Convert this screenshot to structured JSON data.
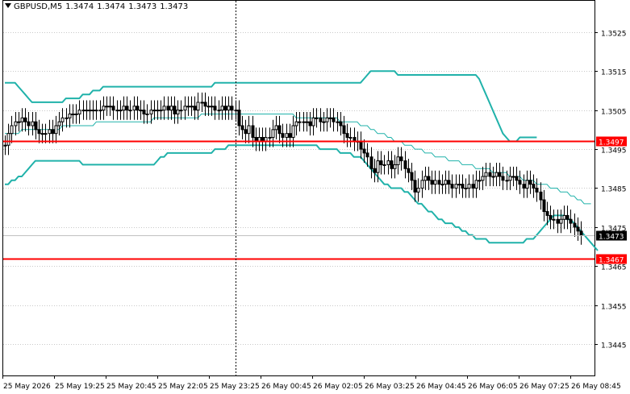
{
  "header": {
    "symbol": "GBPUSD,M5",
    "open": "1.3474",
    "high": "1.3474",
    "low": "1.3473",
    "close": "1.3473"
  },
  "colors": {
    "band": "#20b2aa",
    "hline": "#ff0000",
    "candle": "#000000",
    "grid": "#c8c8c8",
    "price_label_bg": "#000000",
    "hline_label_bg": "#ff0000"
  },
  "chart_data": {
    "type": "candlestick",
    "y_range": [
      1.3437,
      1.3533
    ],
    "y_ticks": [
      "1.3525",
      "1.3515",
      "1.3505",
      "1.3495",
      "1.3485",
      "1.3475",
      "1.3465",
      "1.3455",
      "1.3445"
    ],
    "y_tick_values": [
      1.3525,
      1.3515,
      1.3505,
      1.3495,
      1.3485,
      1.3475,
      1.3465,
      1.3455,
      1.3445
    ],
    "x_ticks": [
      "25 May 2026",
      "25 May 19:25",
      "25 May 20:45",
      "25 May 22:05",
      "25 May 23:25",
      "26 May 00:45",
      "26 May 02:05",
      "26 May 03:25",
      "26 May 04:45",
      "26 May 06:05",
      "26 May 07:25",
      "26 May 08:45"
    ],
    "horizontal_lines": [
      {
        "price": 1.3497,
        "label": "1.3497"
      },
      {
        "price": 1.3467,
        "label": "1.3467"
      }
    ],
    "current_price": {
      "price": 1.3473,
      "label": "1.3473"
    },
    "vertical_marker_bar": 68,
    "close": [
      1.3496,
      1.3499,
      1.3501,
      1.3502,
      1.3502,
      1.3503,
      1.3502,
      1.3501,
      1.3502,
      1.35,
      1.3499,
      1.3499,
      1.3499,
      1.35,
      1.3499,
      1.3501,
      1.3502,
      1.3503,
      1.3503,
      1.3504,
      1.3504,
      1.3504,
      1.3505,
      1.3505,
      1.3505,
      1.3505,
      1.3505,
      1.3505,
      1.3505,
      1.3506,
      1.3506,
      1.3506,
      1.3505,
      1.3505,
      1.3505,
      1.3506,
      1.3505,
      1.3505,
      1.3506,
      1.3505,
      1.3505,
      1.3504,
      1.3504,
      1.3505,
      1.3505,
      1.3505,
      1.3505,
      1.3506,
      1.3505,
      1.3506,
      1.3504,
      1.3505,
      1.3505,
      1.3506,
      1.3506,
      1.3506,
      1.3505,
      1.3507,
      1.3507,
      1.3506,
      1.3506,
      1.3506,
      1.3505,
      1.3505,
      1.3506,
      1.3505,
      1.3506,
      1.3505,
      1.3505,
      1.3501,
      1.35,
      1.3499,
      1.3501,
      1.3498,
      1.3497,
      1.3498,
      1.3497,
      1.3498,
      1.3498,
      1.35,
      1.3501,
      1.3499,
      1.3498,
      1.3499,
      1.3498,
      1.3501,
      1.3502,
      1.3502,
      1.3502,
      1.3502,
      1.3501,
      1.3503,
      1.3503,
      1.3502,
      1.3502,
      1.3503,
      1.3503,
      1.3502,
      1.3502,
      1.3501,
      1.3499,
      1.3498,
      1.3498,
      1.3497,
      1.3497,
      1.3495,
      1.3494,
      1.3493,
      1.349,
      1.3489,
      1.3492,
      1.3491,
      1.3491,
      1.3492,
      1.349,
      1.3491,
      1.3493,
      1.3492,
      1.349,
      1.3489,
      1.3487,
      1.3484,
      1.3485,
      1.3487,
      1.3488,
      1.3487,
      1.3486,
      1.3487,
      1.3486,
      1.3486,
      1.3487,
      1.3486,
      1.3485,
      1.3486,
      1.3486,
      1.3485,
      1.3485,
      1.3486,
      1.3485,
      1.3487,
      1.3487,
      1.3488,
      1.3489,
      1.3488,
      1.3488,
      1.3489,
      1.3488,
      1.3487,
      1.3487,
      1.3488,
      1.3488,
      1.3487,
      1.3486,
      1.3485,
      1.3487,
      1.3486,
      1.3485,
      1.3484,
      1.3482,
      1.3479,
      1.3478,
      1.3477,
      1.3477,
      1.3476,
      1.3477,
      1.3478,
      1.3477,
      1.3476,
      1.3475,
      1.3474,
      1.3473
    ],
    "bb_upper": [
      1.3512,
      1.3512,
      1.3512,
      1.3512,
      1.3511,
      1.351,
      1.3509,
      1.3508,
      1.3507,
      1.3507,
      1.3507,
      1.3507,
      1.3507,
      1.3507,
      1.3507,
      1.3507,
      1.3507,
      1.3507,
      1.3508,
      1.3508,
      1.3508,
      1.3508,
      1.3508,
      1.3509,
      1.3509,
      1.3509,
      1.351,
      1.351,
      1.351,
      1.3511,
      1.3511,
      1.3511,
      1.3511,
      1.3511,
      1.3511,
      1.3511,
      1.3511,
      1.3511,
      1.3511,
      1.3511,
      1.3511,
      1.3511,
      1.3511,
      1.3511,
      1.3511,
      1.3511,
      1.3511,
      1.3511,
      1.3511,
      1.3511,
      1.3511,
      1.3511,
      1.3511,
      1.3511,
      1.3511,
      1.3511,
      1.3511,
      1.3511,
      1.3511,
      1.3511,
      1.3511,
      1.3511,
      1.3512,
      1.3512,
      1.3512,
      1.3512,
      1.3512,
      1.3512,
      1.3512,
      1.3512,
      1.3512,
      1.3512,
      1.3512,
      1.3512,
      1.3512,
      1.3512,
      1.3512,
      1.3512,
      1.3512,
      1.3512,
      1.3512,
      1.3512,
      1.3512,
      1.3512,
      1.3512,
      1.3512,
      1.3512,
      1.3512,
      1.3512,
      1.3512,
      1.3512,
      1.3512,
      1.3512,
      1.3512,
      1.3512,
      1.3512,
      1.3512,
      1.3512,
      1.3512,
      1.3512,
      1.3512,
      1.3512,
      1.3512,
      1.3512,
      1.3512,
      1.3512,
      1.3513,
      1.3514,
      1.3515,
      1.3515,
      1.3515,
      1.3515,
      1.3515,
      1.3515,
      1.3515,
      1.3515,
      1.3514,
      1.3514,
      1.3514,
      1.3514,
      1.3514,
      1.3514,
      1.3514,
      1.3514,
      1.3514,
      1.3514,
      1.3514,
      1.3514,
      1.3514,
      1.3514,
      1.3514,
      1.3514,
      1.3514,
      1.3514,
      1.3514,
      1.3514,
      1.3514,
      1.3514,
      1.3514,
      1.3514,
      1.3513,
      1.3511,
      1.3509,
      1.3507,
      1.3505,
      1.3503,
      1.3501,
      1.3499,
      1.3498,
      1.3497,
      1.3497,
      1.3497,
      1.3498,
      1.3498,
      1.3498,
      1.3498,
      1.3498,
      1.3498,
      null,
      null,
      null,
      null,
      null,
      null,
      null,
      null,
      null,
      null,
      null,
      null,
      null,
      null,
      null
    ],
    "bb_middle": [
      1.3499,
      1.3499,
      1.3499,
      1.3499,
      1.3499,
      1.35,
      1.35,
      1.35,
      1.35,
      1.35,
      1.35,
      1.35,
      1.35,
      1.35,
      1.35,
      1.35,
      1.35,
      1.3501,
      1.3501,
      1.3501,
      1.3501,
      1.3501,
      1.3501,
      1.3501,
      1.3501,
      1.3501,
      1.3501,
      1.3502,
      1.3502,
      1.3502,
      1.3502,
      1.3502,
      1.3502,
      1.3502,
      1.3502,
      1.3502,
      1.3502,
      1.3502,
      1.3502,
      1.3502,
      1.3502,
      1.3502,
      1.3502,
      1.3502,
      1.3503,
      1.3503,
      1.3503,
      1.3503,
      1.3503,
      1.3503,
      1.3503,
      1.3503,
      1.3503,
      1.3503,
      1.3503,
      1.3503,
      1.3503,
      1.3503,
      1.3504,
      1.3504,
      1.3504,
      1.3504,
      1.3504,
      1.3504,
      1.3504,
      1.3504,
      1.3504,
      1.3504,
      1.3504,
      1.3504,
      1.3504,
      1.3504,
      1.3504,
      1.3504,
      1.3504,
      1.3504,
      1.3504,
      1.3504,
      1.3504,
      1.3504,
      1.3504,
      1.3504,
      1.3504,
      1.3504,
      1.3504,
      1.3504,
      1.3503,
      1.3503,
      1.3503,
      1.3503,
      1.3503,
      1.3503,
      1.3503,
      1.3503,
      1.3503,
      1.3503,
      1.3503,
      1.3503,
      1.3503,
      1.3502,
      1.3502,
      1.3502,
      1.3502,
      1.3502,
      1.3502,
      1.3501,
      1.3501,
      1.3501,
      1.35,
      1.35,
      1.3499,
      1.3499,
      1.3499,
      1.3498,
      1.3498,
      1.3497,
      1.3497,
      1.3497,
      1.3496,
      1.3496,
      1.3496,
      1.3495,
      1.3495,
      1.3495,
      1.3494,
      1.3494,
      1.3494,
      1.3493,
      1.3493,
      1.3493,
      1.3493,
      1.3492,
      1.3492,
      1.3492,
      1.3492,
      1.3491,
      1.3491,
      1.3491,
      1.3491,
      1.349,
      1.349,
      1.349,
      1.349,
      1.349,
      1.3489,
      1.3489,
      1.3489,
      1.3489,
      1.3489,
      1.3488,
      1.3488,
      1.3488,
      1.3488,
      1.3487,
      1.3487,
      1.3487,
      1.3487,
      1.3486,
      1.3486,
      1.3486,
      1.3486,
      1.3485,
      1.3485,
      1.3485,
      1.3484,
      1.3484,
      1.3484,
      1.3483,
      1.3483,
      1.3482,
      1.3482,
      1.3481,
      1.3481,
      1.3481
    ],
    "bb_lower": [
      1.3486,
      1.3486,
      1.3487,
      1.3487,
      1.3488,
      1.3488,
      1.3489,
      1.349,
      1.3491,
      1.3492,
      1.3492,
      1.3492,
      1.3492,
      1.3492,
      1.3492,
      1.3492,
      1.3492,
      1.3492,
      1.3492,
      1.3492,
      1.3492,
      1.3492,
      1.3492,
      1.3491,
      1.3491,
      1.3491,
      1.3491,
      1.3491,
      1.3491,
      1.3491,
      1.3491,
      1.3491,
      1.3491,
      1.3491,
      1.3491,
      1.3491,
      1.3491,
      1.3491,
      1.3491,
      1.3491,
      1.3491,
      1.3491,
      1.3491,
      1.3491,
      1.3491,
      1.3492,
      1.3493,
      1.3493,
      1.3494,
      1.3494,
      1.3494,
      1.3494,
      1.3494,
      1.3494,
      1.3494,
      1.3494,
      1.3494,
      1.3494,
      1.3494,
      1.3494,
      1.3494,
      1.3494,
      1.3495,
      1.3495,
      1.3495,
      1.3495,
      1.3496,
      1.3496,
      1.3496,
      1.3496,
      1.3496,
      1.3496,
      1.3496,
      1.3496,
      1.3496,
      1.3496,
      1.3496,
      1.3496,
      1.3496,
      1.3496,
      1.3496,
      1.3496,
      1.3496,
      1.3496,
      1.3496,
      1.3496,
      1.3496,
      1.3496,
      1.3496,
      1.3496,
      1.3496,
      1.3496,
      1.3496,
      1.3495,
      1.3495,
      1.3495,
      1.3495,
      1.3495,
      1.3495,
      1.3494,
      1.3494,
      1.3494,
      1.3494,
      1.3493,
      1.3493,
      1.3493,
      1.3492,
      1.3491,
      1.349,
      1.3489,
      1.3488,
      1.3487,
      1.3486,
      1.3486,
      1.3485,
      1.3485,
      1.3485,
      1.3485,
      1.3484,
      1.3484,
      1.3483,
      1.3482,
      1.3481,
      1.3481,
      1.348,
      1.3479,
      1.3479,
      1.3478,
      1.3477,
      1.3477,
      1.3476,
      1.3476,
      1.3476,
      1.3475,
      1.3475,
      1.3474,
      1.3474,
      1.3473,
      1.3473,
      1.3472,
      1.3472,
      1.3472,
      1.3472,
      1.3471,
      1.3471,
      1.3471,
      1.3471,
      1.3471,
      1.3471,
      1.3471,
      1.3471,
      1.3471,
      1.3471,
      1.3471,
      1.3472,
      1.3472,
      1.3472,
      1.3473,
      1.3474,
      1.3475,
      1.3476,
      1.3477,
      1.3478,
      1.3478,
      1.3478,
      1.3478,
      1.3477,
      1.3477,
      1.3476,
      1.3475,
      1.3474,
      1.3473,
      1.3472,
      1.3471,
      1.347,
      1.3469
    ]
  }
}
